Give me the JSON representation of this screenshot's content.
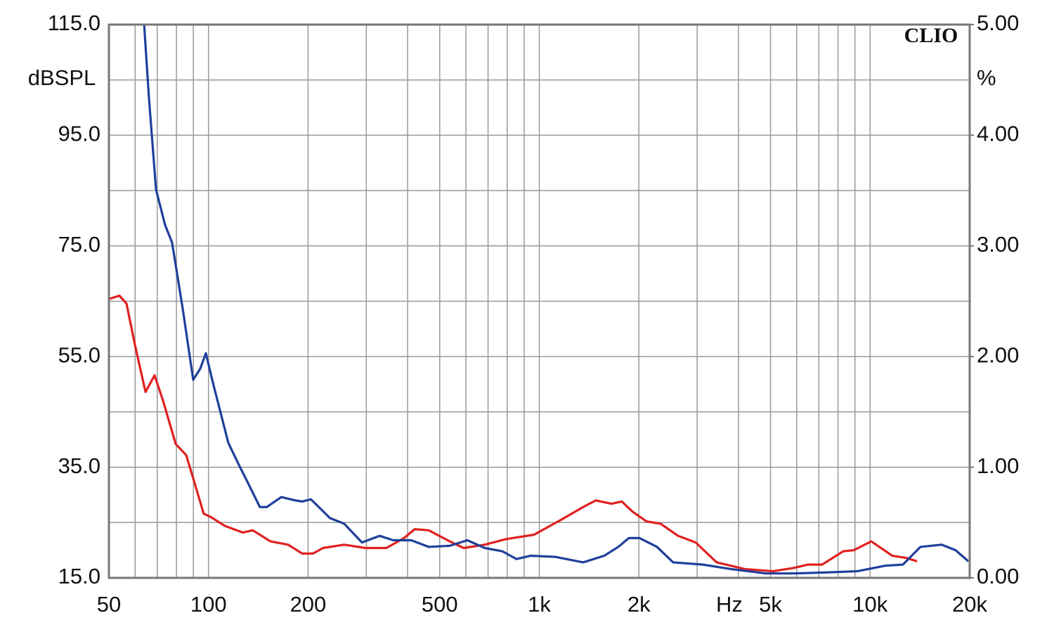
{
  "chart_data": {
    "type": "line",
    "title": "CLIO",
    "y_label": "dBSPL",
    "y2_label": "%",
    "x_unit": "Hz",
    "log_x": true,
    "grid": true,
    "xlim": [
      50,
      20000
    ],
    "xticks": [
      50,
      100,
      200,
      500,
      {
        "value": 1000,
        "label": "1k"
      },
      {
        "value": 2000,
        "label": "2k"
      },
      {
        "value": 5000,
        "label": "5k"
      },
      {
        "value": 10000,
        "label": "10k"
      },
      {
        "value": 20000,
        "label": "20k"
      }
    ],
    "xgrid": [
      60,
      70,
      80,
      90,
      300,
      400,
      600,
      700,
      800,
      900,
      3000,
      4000,
      6000,
      7000,
      8000,
      9000
    ],
    "ylim": [
      15,
      115
    ],
    "yticks": [
      {
        "value": 15,
        "label": "15.0"
      },
      {
        "value": 35,
        "label": "35.0"
      },
      {
        "value": 55,
        "label": "55.0"
      },
      {
        "value": 75,
        "label": "75.0"
      },
      {
        "value": 95,
        "label": "95.0"
      },
      {
        "value": 115,
        "label": "115.0"
      }
    ],
    "ygrid": [
      25,
      45,
      65,
      85,
      105
    ],
    "y2lim": [
      0,
      5
    ],
    "y2ticks": [
      {
        "value": 0,
        "label": "0.00"
      },
      {
        "value": 1,
        "label": "1.00"
      },
      {
        "value": 2,
        "label": "2.00"
      },
      {
        "value": 3,
        "label": "3.00"
      },
      {
        "value": 4,
        "label": "4.00"
      },
      {
        "value": 5,
        "label": "5.00"
      }
    ],
    "series": [
      {
        "color": "#e02020",
        "axis": "y2",
        "x": [
          50,
          53.8,
          56.5,
          59.9,
          64.5,
          68.7,
          72.9,
          79.6,
          85.6,
          89.9,
          96.7,
          101.6,
          112,
          127,
          136,
          154,
          174,
          192,
          207,
          222,
          257,
          298,
          345,
          390,
          420,
          463,
          536,
          591,
          684,
          792,
          964,
          1063,
          1172,
          1357,
          1482,
          1651,
          1776,
          1911,
          2108,
          2324,
          2627,
          2969,
          3437,
          4181,
          5084,
          5886,
          6491,
          7159,
          8290,
          8922,
          10083,
          11673,
          12875,
          13858
        ],
        "values": [
          2.52,
          2.55,
          2.48,
          2.11,
          1.68,
          1.83,
          1.6,
          1.21,
          1.11,
          0.9,
          0.58,
          0.55,
          0.47,
          0.41,
          0.43,
          0.33,
          0.3,
          0.22,
          0.22,
          0.27,
          0.3,
          0.27,
          0.27,
          0.36,
          0.44,
          0.43,
          0.33,
          0.27,
          0.3,
          0.35,
          0.39,
          0.46,
          0.53,
          0.64,
          0.7,
          0.67,
          0.69,
          0.6,
          0.51,
          0.49,
          0.38,
          0.32,
          0.14,
          0.08,
          0.06,
          0.09,
          0.12,
          0.12,
          0.24,
          0.25,
          0.33,
          0.2,
          0.18,
          0.15
        ]
      },
      {
        "color": "#1f3f9a",
        "axis": "y2",
        "x": [
          63.9,
          66.1,
          69.4,
          73.9,
          77.6,
          83.6,
          89.9,
          94.4,
          98.2,
          102.6,
          114.8,
          123.6,
          131,
          143,
          150,
          166,
          183,
          192,
          204,
          233,
          257,
          291,
          329,
          362,
          410,
          463,
          536,
          606,
          684,
          774,
          853,
          941,
          1116,
          1357,
          1572,
          1733,
          1865,
          2007,
          2269,
          2538,
          3117,
          3791,
          4841,
          5886,
          7517,
          9144,
          11117,
          12566,
          14202,
          16443,
          18134,
          19810
        ],
        "values": [
          5,
          4.33,
          3.51,
          3.19,
          3.03,
          2.43,
          1.79,
          1.89,
          2.03,
          1.79,
          1.22,
          1.02,
          0.87,
          0.64,
          0.64,
          0.73,
          0.7,
          0.69,
          0.71,
          0.54,
          0.49,
          0.32,
          0.38,
          0.34,
          0.34,
          0.28,
          0.29,
          0.34,
          0.27,
          0.24,
          0.17,
          0.2,
          0.19,
          0.14,
          0.2,
          0.28,
          0.36,
          0.36,
          0.28,
          0.14,
          0.12,
          0.08,
          0.04,
          0.04,
          0.05,
          0.06,
          0.11,
          0.12,
          0.28,
          0.3,
          0.25,
          0.15
        ]
      }
    ]
  }
}
